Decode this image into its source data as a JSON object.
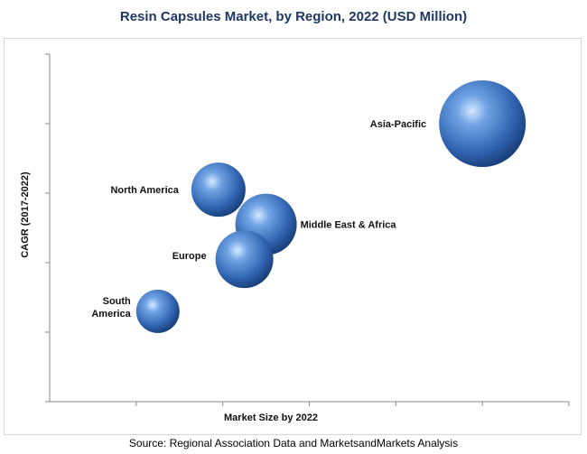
{
  "chart_data": {
    "type": "bubble",
    "title": "Resin Capsules Market, by Region, 2022 (USD Million)",
    "xlabel": "Market Size by 2022",
    "ylabel": "CAGR (2017-2022)",
    "source": "Source: Regional Association Data and MarketsandMarkets Analysis",
    "x_ticks": 6,
    "y_ticks": 5,
    "xlim": [
      0,
      6
    ],
    "ylim": [
      0,
      5
    ],
    "grid": false,
    "bubble_color": "#3d74c0",
    "points": [
      {
        "name": "Asia-Pacific",
        "x": 5.0,
        "y": 4.0,
        "size": 48
      },
      {
        "name": "North America",
        "x": 1.95,
        "y": 3.05,
        "size": 30
      },
      {
        "name": "Middle East & Africa",
        "x": 2.5,
        "y": 2.55,
        "size": 34
      },
      {
        "name": "Europe",
        "x": 2.25,
        "y": 2.05,
        "size": 32
      },
      {
        "name": "South\nAmerica",
        "x": 1.25,
        "y": 1.3,
        "size": 24
      }
    ]
  }
}
